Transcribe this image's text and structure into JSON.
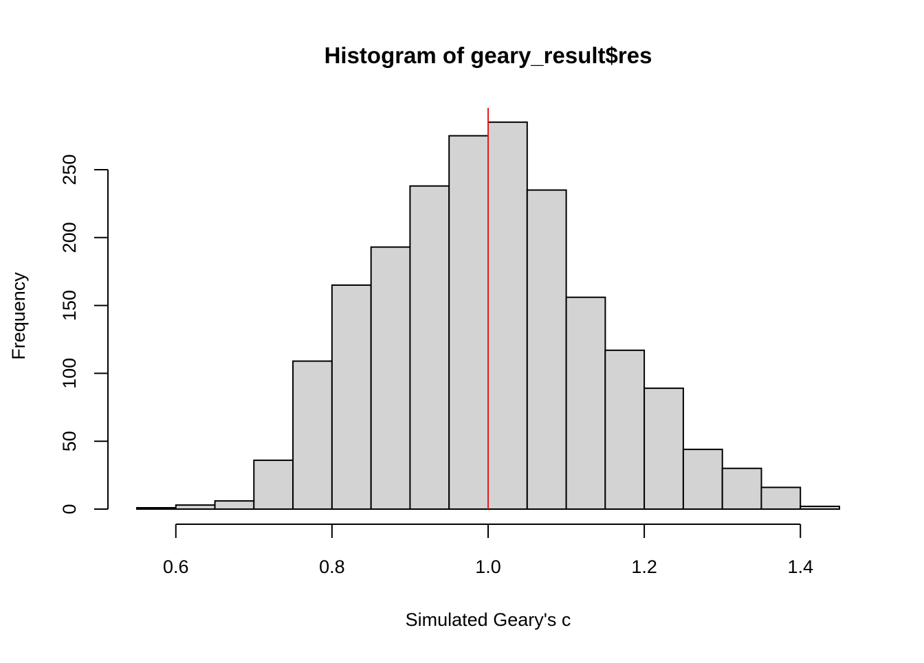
{
  "chart_data": {
    "type": "histogram",
    "title": "Histogram of geary_result$res",
    "xlabel": "Simulated Geary's c",
    "ylabel": "Frequency",
    "bins": [
      {
        "start": 0.55,
        "end": 0.6,
        "count": 1
      },
      {
        "start": 0.6,
        "end": 0.65,
        "count": 3
      },
      {
        "start": 0.65,
        "end": 0.7,
        "count": 6
      },
      {
        "start": 0.7,
        "end": 0.75,
        "count": 36
      },
      {
        "start": 0.75,
        "end": 0.8,
        "count": 109
      },
      {
        "start": 0.8,
        "end": 0.85,
        "count": 165
      },
      {
        "start": 0.85,
        "end": 0.9,
        "count": 193
      },
      {
        "start": 0.9,
        "end": 0.95,
        "count": 238
      },
      {
        "start": 0.95,
        "end": 1.0,
        "count": 275
      },
      {
        "start": 1.0,
        "end": 1.05,
        "count": 285
      },
      {
        "start": 1.05,
        "end": 1.1,
        "count": 235
      },
      {
        "start": 1.1,
        "end": 1.15,
        "count": 156
      },
      {
        "start": 1.15,
        "end": 1.2,
        "count": 117
      },
      {
        "start": 1.2,
        "end": 1.25,
        "count": 89
      },
      {
        "start": 1.25,
        "end": 1.3,
        "count": 44
      },
      {
        "start": 1.3,
        "end": 1.35,
        "count": 30
      },
      {
        "start": 1.35,
        "end": 1.4,
        "count": 16
      },
      {
        "start": 1.4,
        "end": 1.45,
        "count": 2
      }
    ],
    "x_ticks": [
      {
        "value": 0.6,
        "label": "0.6"
      },
      {
        "value": 0.8,
        "label": "0.8"
      },
      {
        "value": 1.0,
        "label": "1.0"
      },
      {
        "value": 1.2,
        "label": "1.2"
      },
      {
        "value": 1.4,
        "label": "1.4"
      }
    ],
    "y_ticks": [
      {
        "value": 0,
        "label": "0"
      },
      {
        "value": 50,
        "label": "50"
      },
      {
        "value": 100,
        "label": "100"
      },
      {
        "value": 150,
        "label": "150"
      },
      {
        "value": 200,
        "label": "200"
      },
      {
        "value": 250,
        "label": "250"
      }
    ],
    "xlim": [
      0.55,
      1.45
    ],
    "ylim": [
      0,
      285
    ],
    "reference_line": {
      "x": 1.0,
      "color": "#e31a1c"
    },
    "bar_fill": "#d3d3d3",
    "bar_stroke": "#000000",
    "grid": false
  }
}
